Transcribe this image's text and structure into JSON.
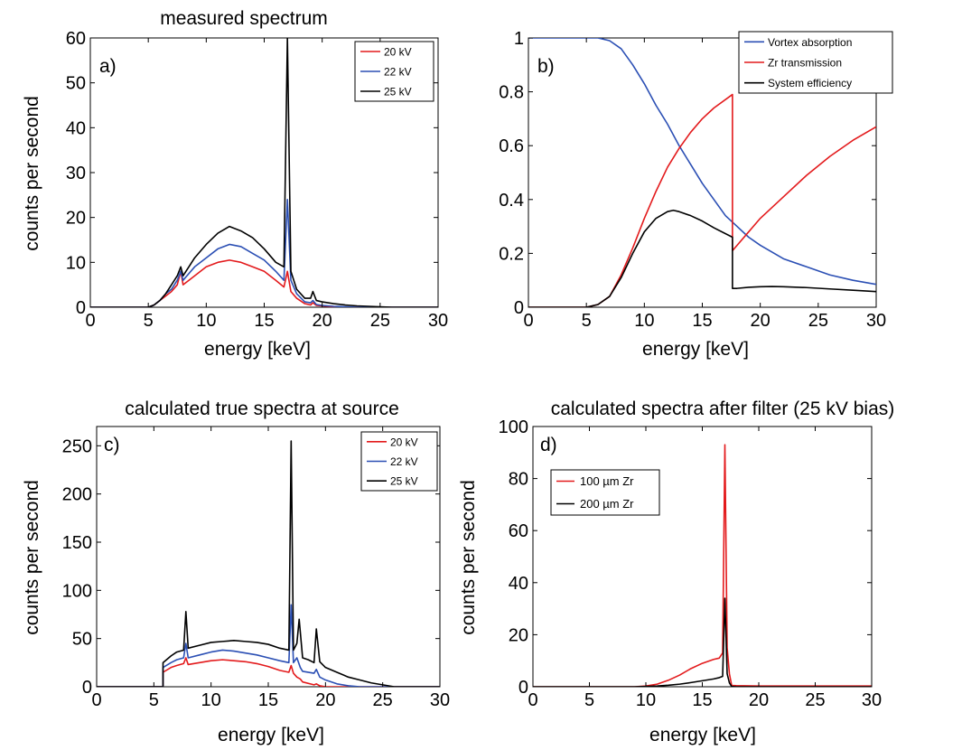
{
  "colors": {
    "red": "#e31a1c",
    "blue": "#2b4fb4",
    "black": "#000000"
  },
  "chart_data": [
    {
      "type": "line",
      "panel_label": "a)",
      "title": "measured spectrum",
      "xlabel": "energy [keV]",
      "ylabel": "counts per second",
      "xlim": [
        0,
        30
      ],
      "ylim": [
        0,
        60
      ],
      "xticks": [
        0,
        5,
        10,
        15,
        20,
        25,
        30
      ],
      "yticks": [
        0,
        10,
        20,
        30,
        40,
        50,
        60
      ],
      "legend_position": "top-right",
      "series": [
        {
          "name": "20 kV",
          "color": "#e31a1c",
          "x": [
            0,
            5,
            5.5,
            6,
            6.5,
            7,
            7.5,
            7.8,
            8,
            8.5,
            9,
            10,
            11,
            12,
            13,
            14,
            15,
            16,
            16.7,
            17,
            17.3,
            17.8,
            18.5,
            19,
            19.2,
            19.5,
            20,
            21,
            22,
            23,
            24,
            25,
            26,
            30
          ],
          "y": [
            0,
            0,
            0.5,
            1.5,
            2.5,
            3.5,
            5,
            8,
            5,
            6,
            7,
            9,
            10,
            10.5,
            10,
            9,
            8,
            6,
            4.5,
            8,
            3.5,
            2,
            0.8,
            0.5,
            1,
            0.4,
            0.3,
            0.1,
            0,
            0,
            0,
            0,
            0,
            0
          ]
        },
        {
          "name": "22 kV",
          "color": "#2b4fb4",
          "x": [
            0,
            5,
            5.5,
            6,
            6.5,
            7,
            7.5,
            7.8,
            8,
            8.5,
            9,
            10,
            11,
            12,
            13,
            14,
            15,
            16,
            16.7,
            17,
            17.3,
            17.8,
            18.5,
            19,
            19.2,
            19.5,
            20,
            21,
            22,
            23,
            24,
            25,
            26,
            30
          ],
          "y": [
            0,
            0,
            0.5,
            1.5,
            3,
            4,
            6,
            8,
            6,
            7.5,
            9,
            11,
            13,
            14,
            13.5,
            12,
            10.5,
            8,
            6,
            24,
            6,
            3,
            1.2,
            1,
            1.5,
            0.6,
            0.4,
            0.2,
            0.1,
            0,
            0,
            0,
            0,
            0
          ]
        },
        {
          "name": "25 kV",
          "color": "#000000",
          "x": [
            0,
            5,
            5.5,
            6,
            6.5,
            7,
            7.5,
            7.8,
            8,
            8.5,
            9,
            10,
            11,
            12,
            13,
            14,
            15,
            16,
            16.7,
            17,
            17.3,
            17.8,
            18.5,
            19,
            19.2,
            19.5,
            20,
            21,
            22,
            23,
            24,
            25,
            26,
            30
          ],
          "y": [
            0,
            0,
            0.5,
            1.5,
            3,
            5,
            7,
            9,
            7,
            9,
            11,
            14,
            16.5,
            18,
            17,
            15.5,
            13,
            10,
            9,
            60,
            8,
            4,
            2,
            2,
            3.5,
            1.5,
            1.2,
            0.8,
            0.5,
            0.3,
            0.2,
            0.1,
            0,
            0
          ]
        }
      ]
    },
    {
      "type": "line",
      "panel_label": "b)",
      "title": "",
      "xlabel": "energy [keV]",
      "ylabel": "",
      "xlim": [
        0,
        30
      ],
      "ylim": [
        0,
        1
      ],
      "xticks": [
        0,
        5,
        10,
        15,
        20,
        25,
        30
      ],
      "yticks": [
        0,
        0.2,
        0.4,
        0.6,
        0.8,
        1
      ],
      "ytick_labels": [
        "0",
        "0.2",
        "0.4",
        "0.6",
        "0.8",
        "1"
      ],
      "legend_position": "top-right",
      "series": [
        {
          "name": "Vortex absorption",
          "color": "#2b4fb4",
          "x": [
            0,
            5,
            6,
            7,
            8,
            9,
            10,
            11,
            12,
            13,
            14,
            15,
            16,
            17,
            18,
            19,
            20,
            22,
            24,
            26,
            28,
            30
          ],
          "y": [
            1,
            1,
            1,
            0.99,
            0.96,
            0.9,
            0.83,
            0.75,
            0.68,
            0.6,
            0.53,
            0.46,
            0.4,
            0.34,
            0.3,
            0.26,
            0.23,
            0.18,
            0.15,
            0.12,
            0.1,
            0.085
          ]
        },
        {
          "name": "Zr transmission",
          "color": "#e31a1c",
          "x": [
            0,
            5,
            6,
            7,
            8,
            9,
            10,
            11,
            12,
            13,
            14,
            15,
            16,
            17.6,
            17.6,
            18,
            19,
            20,
            22,
            24,
            26,
            28,
            30
          ],
          "y": [
            0,
            0,
            0.01,
            0.04,
            0.12,
            0.22,
            0.33,
            0.43,
            0.52,
            0.59,
            0.65,
            0.7,
            0.74,
            0.79,
            0.21,
            0.23,
            0.28,
            0.33,
            0.41,
            0.49,
            0.56,
            0.62,
            0.67
          ]
        },
        {
          "name": "System efficiency",
          "color": "#000000",
          "x": [
            0,
            5,
            6,
            7,
            8,
            9,
            10,
            11,
            12,
            12.5,
            13,
            14,
            15,
            16,
            17.6,
            17.6,
            18,
            19,
            20,
            21,
            22,
            24,
            26,
            28,
            30
          ],
          "y": [
            0,
            0,
            0.01,
            0.04,
            0.11,
            0.2,
            0.28,
            0.33,
            0.355,
            0.36,
            0.355,
            0.34,
            0.32,
            0.295,
            0.26,
            0.07,
            0.07,
            0.074,
            0.076,
            0.077,
            0.076,
            0.073,
            0.068,
            0.063,
            0.058
          ]
        }
      ]
    },
    {
      "type": "line",
      "panel_label": "c)",
      "title": "calculated true spectra at source",
      "xlabel": "energy [keV]",
      "ylabel": "counts per second",
      "xlim": [
        0,
        30
      ],
      "ylim": [
        0,
        270
      ],
      "xticks": [
        0,
        5,
        10,
        15,
        20,
        25,
        30
      ],
      "yticks": [
        0,
        50,
        100,
        150,
        200,
        250
      ],
      "legend_position": "top-right",
      "series": [
        {
          "name": "20 kV",
          "color": "#e31a1c",
          "x": [
            0,
            5.8,
            5.8,
            6.5,
            7,
            7.6,
            7.8,
            8,
            9,
            10,
            11,
            12,
            13,
            14,
            15,
            16,
            16.8,
            17,
            17.2,
            17.5,
            17.8,
            18,
            19,
            19.2,
            19.5,
            20,
            21,
            30
          ],
          "y": [
            0,
            0,
            15,
            20,
            22,
            24,
            30,
            23,
            25,
            27,
            28,
            27,
            26,
            24,
            21,
            17,
            15,
            22,
            14,
            10,
            8,
            5,
            2,
            3,
            1,
            0,
            0,
            0
          ]
        },
        {
          "name": "22 kV",
          "color": "#2b4fb4",
          "x": [
            0,
            5.8,
            5.8,
            6.5,
            7,
            7.6,
            7.8,
            8,
            9,
            10,
            11,
            12,
            13,
            14,
            15,
            16,
            16.8,
            17,
            17.2,
            17.5,
            17.8,
            18,
            19,
            19.2,
            19.5,
            20,
            21,
            22,
            23,
            30
          ],
          "y": [
            0,
            0,
            20,
            25,
            28,
            30,
            45,
            30,
            33,
            36,
            38,
            37,
            35,
            33,
            30,
            27,
            25,
            85,
            25,
            30,
            20,
            16,
            14,
            18,
            10,
            7,
            3,
            1,
            0,
            0
          ]
        },
        {
          "name": "25 kV",
          "color": "#000000",
          "x": [
            0,
            5.8,
            5.8,
            6.5,
            7,
            7.6,
            7.8,
            8,
            9,
            10,
            11,
            12,
            13,
            14,
            15,
            16,
            16.8,
            17,
            17.2,
            17.5,
            17.7,
            18,
            18.5,
            19,
            19.2,
            19.5,
            20,
            21,
            22,
            23,
            24,
            25,
            26,
            30
          ],
          "y": [
            0,
            0,
            25,
            32,
            36,
            38,
            78,
            40,
            43,
            46,
            47,
            48,
            47,
            46,
            44,
            40,
            38,
            255,
            38,
            45,
            70,
            30,
            28,
            25,
            60,
            26,
            20,
            15,
            10,
            7,
            4,
            2,
            0,
            0
          ]
        }
      ]
    },
    {
      "type": "line",
      "panel_label": "d)",
      "title": "calculated spectra after filter (25 kV bias)",
      "xlabel": "energy [keV]",
      "ylabel": "counts per second",
      "xlim": [
        0,
        30
      ],
      "ylim": [
        0,
        100
      ],
      "xticks": [
        0,
        5,
        10,
        15,
        20,
        25,
        30
      ],
      "yticks": [
        0,
        20,
        40,
        60,
        80,
        100
      ],
      "legend_position": "top-left",
      "series": [
        {
          "name": "100  µm Zr",
          "color": "#e31a1c",
          "x": [
            0,
            9,
            10,
            11,
            12,
            13,
            14,
            15,
            16,
            16.5,
            16.8,
            17,
            17.2,
            17.4,
            17.6,
            18,
            20,
            22,
            24,
            26,
            28,
            30
          ],
          "y": [
            0,
            0,
            0.3,
            1,
            2.5,
            4.5,
            7,
            9,
            10.5,
            11,
            13,
            93,
            15,
            5,
            0.5,
            0.4,
            0.3,
            0.3,
            0.3,
            0.3,
            0.3,
            0.3
          ]
        },
        {
          "name": "200  µm Zr",
          "color": "#000000",
          "x": [
            0,
            9,
            10,
            11,
            12,
            13,
            14,
            15,
            16,
            16.5,
            16.8,
            17,
            17.2,
            17.4,
            17.6,
            18,
            20,
            30
          ],
          "y": [
            0,
            0,
            0.1,
            0.3,
            0.6,
            1,
            1.6,
            2.3,
            3,
            3.5,
            4,
            34,
            5,
            1.5,
            0.1,
            0,
            0,
            0
          ]
        }
      ]
    }
  ]
}
